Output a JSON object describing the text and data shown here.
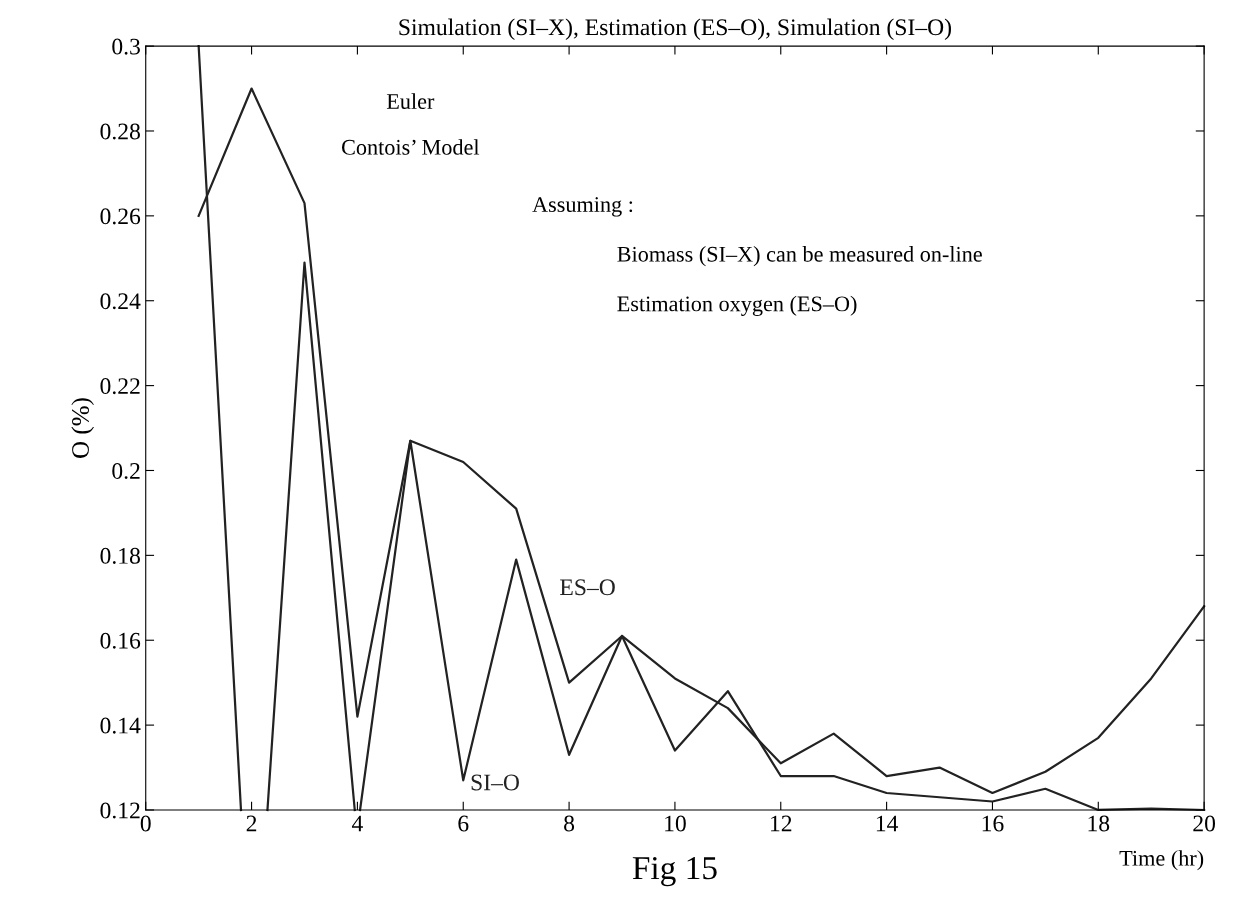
{
  "chart_data": {
    "type": "line",
    "title": "Simulation (SI–X), Estimation (ES–O), Simulation (SI–O)",
    "xlabel": "Time (hr)",
    "ylabel": "O (%)",
    "xlim": [
      0,
      20
    ],
    "xticks": [
      0,
      2,
      4,
      6,
      8,
      10,
      12,
      14,
      16,
      18,
      20
    ],
    "ylim": [
      0.12,
      0.3
    ],
    "yticks": [
      0.12,
      0.14,
      0.16,
      0.18,
      0.2,
      0.22,
      0.24,
      0.26,
      0.28,
      0.3
    ],
    "grid": false,
    "legend": false,
    "marker": "none",
    "line_style": "solid",
    "series": [
      {
        "name": "ES–O",
        "color": "#222222",
        "x": [
          1,
          2,
          3,
          4,
          5,
          6,
          7,
          8,
          9,
          10,
          11,
          12,
          13,
          14,
          15,
          16,
          17,
          18,
          19,
          20
        ],
        "values": [
          0.26,
          0.29,
          0.263,
          0.142,
          0.207,
          0.202,
          0.191,
          0.15,
          0.161,
          0.151,
          0.144,
          0.131,
          0.138,
          0.128,
          0.13,
          0.124,
          0.129,
          0.137,
          0.151,
          0.168
        ]
      },
      {
        "name": "SI–O",
        "color": "#222222",
        "x": [
          1,
          1.8,
          2,
          2.3,
          3,
          3.95,
          4,
          4.05,
          5,
          6,
          7,
          8,
          9,
          10,
          11,
          12,
          13,
          14,
          15,
          16,
          17,
          18,
          19,
          20
        ],
        "values": [
          0.3,
          0.12,
          null,
          0.12,
          0.249,
          0.12,
          null,
          0.12,
          0.207,
          0.127,
          0.179,
          0.133,
          0.161,
          0.134,
          0.148,
          0.128,
          0.128,
          0.124,
          0.123,
          0.122,
          0.125,
          0.12,
          0.1203,
          0.12
        ]
      }
    ],
    "annotations": [
      "Euler",
      "Contois’ Model",
      "Assuming :",
      "Biomass (SI–X) can be measured on-line",
      "Estimation oxygen (ES–O)",
      "Fig 15"
    ]
  }
}
